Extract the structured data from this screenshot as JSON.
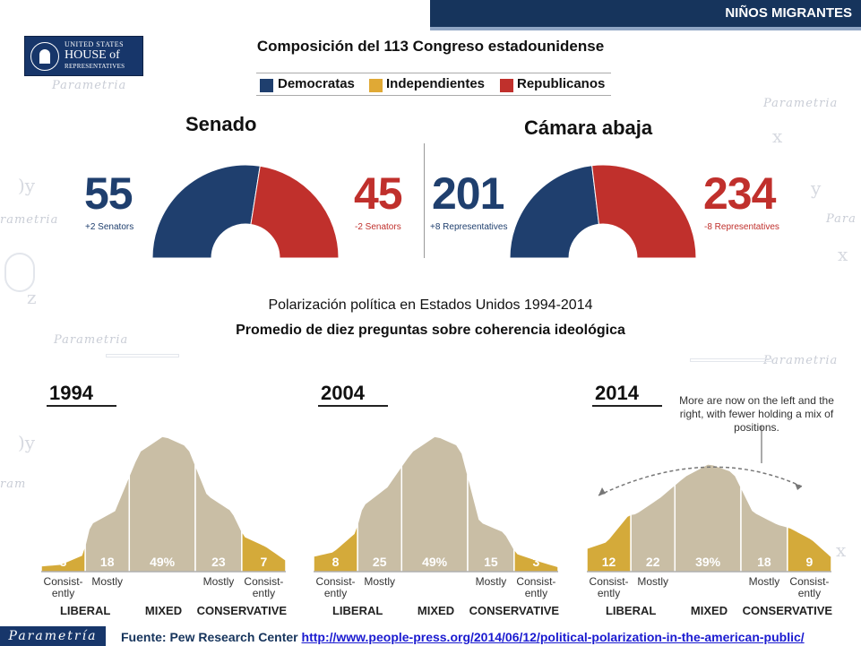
{
  "header": {
    "banner": "NIÑOS MIGRANTES"
  },
  "logo": {
    "line1": "UNITED STATES",
    "line2": "HOUSE of",
    "line3": "REPRESENTATIVES"
  },
  "congress": {
    "title": "Composición del 113 Congreso estadounidense",
    "legend": [
      {
        "label": "Democratas",
        "color": "#1f3f6e"
      },
      {
        "label": "Independientes",
        "color": "#e0a935"
      },
      {
        "label": "Republicanos",
        "color": "#c0302c"
      }
    ],
    "senate": {
      "label": "Senado",
      "dem": "55",
      "dem_change": "+2 Senators",
      "rep": "45",
      "rep_change": "-2 Senators"
    },
    "house": {
      "label": "Cámara abaja",
      "dem": "201",
      "dem_change": "+8 Representatives",
      "rep": "234",
      "rep_change": "-8 Representatives"
    }
  },
  "polarization": {
    "title": "Polarización política en Estados Unidos 1994-2014",
    "subtitle": "Promedio de diez preguntas sobre coherencia ideológica",
    "annotation": "More are now on the left and the right, with fewer holding a mix of positions."
  },
  "chart_data": [
    {
      "type": "pie",
      "title": "Senado",
      "categories": [
        "Democratas",
        "Republicanos"
      ],
      "values": [
        55,
        45
      ],
      "colors": [
        "#1f3f6e",
        "#c0302c"
      ]
    },
    {
      "type": "pie",
      "title": "Cámara abaja",
      "categories": [
        "Democratas",
        "Republicanos"
      ],
      "values": [
        201,
        234
      ],
      "colors": [
        "#1f3f6e",
        "#c0302c"
      ]
    },
    {
      "type": "area",
      "categories": [
        "Consist-ently LIBERAL",
        "Mostly LIBERAL",
        "MIXED",
        "Mostly CONSERVATIVE",
        "Consist-ently CONSERVATIVE"
      ],
      "category_labels": [
        "Consist-\nently",
        "Mostly",
        "",
        "Mostly",
        "Consist-\nently"
      ],
      "axis_groups": [
        "LIBERAL",
        "MIXED",
        "CONSERVATIVE"
      ],
      "series": [
        {
          "name": "1994",
          "values": [
            3,
            18,
            49,
            23,
            7
          ],
          "labels": [
            "3",
            "18",
            "49%",
            "23",
            "7"
          ]
        },
        {
          "name": "2004",
          "values": [
            8,
            25,
            49,
            15,
            3
          ],
          "labels": [
            "8",
            "25",
            "49%",
            "15",
            "3"
          ]
        },
        {
          "name": "2014",
          "values": [
            12,
            22,
            39,
            18,
            9
          ],
          "labels": [
            "12",
            "22",
            "39%",
            "18",
            "9"
          ]
        }
      ],
      "colors": {
        "consistent": "#d4aa3a",
        "middle": "#c9bea5"
      }
    }
  ],
  "footer": {
    "brand": "Parametría",
    "source_prefix": "Fuente: Pew Research Center ",
    "source_url": "http://www.people-press.org/2014/06/12/political-polarization-in-the-american-public/"
  }
}
